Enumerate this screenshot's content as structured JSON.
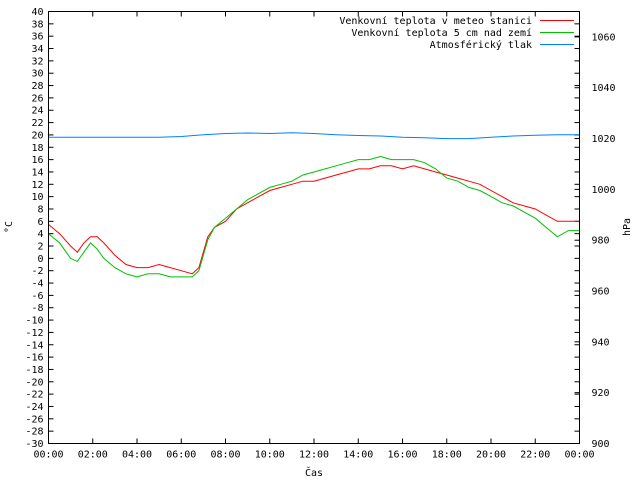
{
  "chart_data": {
    "type": "line",
    "xlabel": "Čas",
    "ylabel": "°C",
    "y2label": "hPa",
    "x_ticks": [
      "00:00",
      "02:00",
      "04:00",
      "06:00",
      "08:00",
      "10:00",
      "12:00",
      "14:00",
      "16:00",
      "18:00",
      "20:00",
      "22:00",
      "00:00"
    ],
    "xlim_hours": [
      0,
      24
    ],
    "ylim": [
      -30,
      40
    ],
    "y_ticks": [
      -30,
      -28,
      -26,
      -24,
      -22,
      -20,
      -18,
      -16,
      -14,
      -12,
      -10,
      -8,
      -6,
      -4,
      -2,
      0,
      2,
      4,
      6,
      8,
      10,
      12,
      14,
      16,
      18,
      20,
      22,
      24,
      26,
      28,
      30,
      32,
      34,
      36,
      38,
      40
    ],
    "y2lim": [
      900,
      1070
    ],
    "y2_ticks": [
      900,
      920,
      940,
      960,
      980,
      1000,
      1020,
      1040,
      1060
    ],
    "grid": false,
    "legend_position": "top-right",
    "series": [
      {
        "name": "Venkovní teplota v meteo stanici",
        "color": "#ff0000",
        "axis": "left",
        "x": [
          0,
          0.5,
          1,
          1.3,
          1.6,
          1.9,
          2.2,
          2.5,
          3,
          3.5,
          4,
          4.5,
          5,
          5.5,
          6,
          6.5,
          6.8,
          7.2,
          7.5,
          8,
          8.5,
          9,
          9.5,
          10,
          10.5,
          11,
          11.5,
          12,
          12.5,
          13,
          13.5,
          14,
          14.5,
          15,
          15.5,
          16,
          16.5,
          17,
          17.5,
          18,
          18.5,
          19,
          19.5,
          20,
          20.5,
          21,
          21.5,
          22,
          22.5,
          23,
          23.5,
          24
        ],
        "values": [
          5.5,
          4,
          2,
          1,
          2.5,
          3.5,
          3.5,
          2.5,
          0.5,
          -1,
          -1.5,
          -1.5,
          -1,
          -1.5,
          -2,
          -2.5,
          -1.5,
          3.5,
          5,
          6,
          8,
          9,
          10,
          11,
          11.5,
          12,
          12.5,
          12.5,
          13,
          13.5,
          14,
          14.5,
          14.5,
          15,
          15,
          14.5,
          15,
          14.5,
          14,
          13.5,
          13,
          12.5,
          12,
          11,
          10,
          9,
          8.5,
          8,
          7,
          6,
          6,
          6
        ]
      },
      {
        "name": "Venkovní teplota 5 cm nad zemí",
        "color": "#00c000",
        "axis": "left",
        "x": [
          0,
          0.5,
          1,
          1.3,
          1.6,
          1.9,
          2.2,
          2.5,
          3,
          3.5,
          4,
          4.5,
          5,
          5.5,
          6,
          6.5,
          6.8,
          7.2,
          7.5,
          8,
          8.5,
          9,
          9.5,
          10,
          10.5,
          11,
          11.5,
          12,
          12.5,
          13,
          13.5,
          14,
          14.5,
          15,
          15.5,
          16,
          16.5,
          17,
          17.5,
          18,
          18.5,
          19,
          19.5,
          20,
          20.5,
          21,
          21.5,
          22,
          22.5,
          23,
          23.5,
          24
        ],
        "values": [
          4,
          2.5,
          0,
          -0.5,
          1,
          2.5,
          1.5,
          0,
          -1.5,
          -2.5,
          -3,
          -2.5,
          -2.5,
          -3,
          -3,
          -3,
          -2,
          3,
          5,
          6.5,
          8,
          9.5,
          10.5,
          11.5,
          12,
          12.5,
          13.5,
          14,
          14.5,
          15,
          15.5,
          16,
          16,
          16.5,
          16,
          16,
          16,
          15.5,
          14.5,
          13,
          12.5,
          11.5,
          11,
          10,
          9,
          8.5,
          7.5,
          6.5,
          5,
          3.5,
          4.5,
          4.5
        ]
      },
      {
        "name": "Atmosférický tlak",
        "color": "#0080ff",
        "axis": "right",
        "x": [
          0,
          1,
          2,
          3,
          4,
          5,
          6,
          7,
          8,
          9,
          10,
          11,
          12,
          13,
          14,
          15,
          16,
          17,
          18,
          19,
          20,
          21,
          22,
          23,
          24
        ],
        "values": [
          1020.5,
          1020.5,
          1020.5,
          1020.5,
          1020.5,
          1020.5,
          1020.8,
          1021.5,
          1022,
          1022.2,
          1022,
          1022.3,
          1022,
          1021.5,
          1021.2,
          1021,
          1020.5,
          1020.3,
          1020,
          1020,
          1020.5,
          1021,
          1021.3,
          1021.5,
          1021.5
        ]
      }
    ]
  }
}
